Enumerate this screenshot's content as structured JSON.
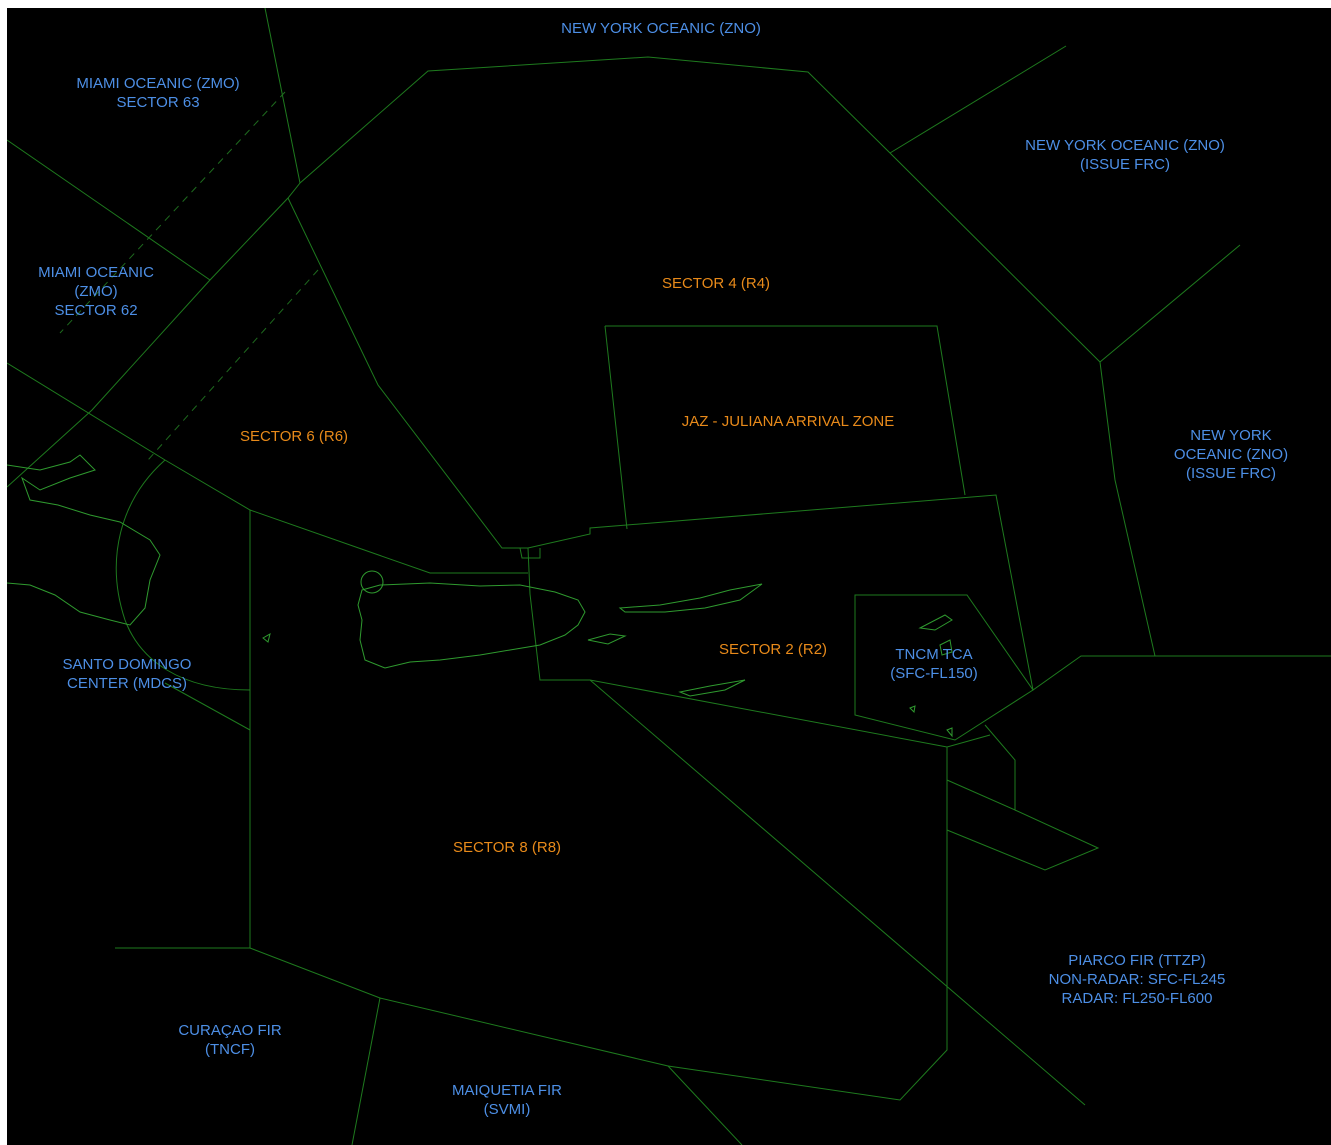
{
  "colors": {
    "background": "#000000",
    "boundary": "#1e7a1e",
    "coastline": "#2f9a2f",
    "external_label": "#4d8fe6",
    "sector_label": "#e88a1a"
  },
  "labels": {
    "ny_oceanic_top": [
      "NEW YORK OCEANIC (ZNO)"
    ],
    "miami_63": [
      "MIAMI OCEANIC (ZMO)",
      "SECTOR 63"
    ],
    "ny_oceanic_frc_1": [
      "NEW YORK OCEANIC (ZNO)",
      "(ISSUE FRC)"
    ],
    "sector_4": [
      "SECTOR 4 (R4)"
    ],
    "miami_62": [
      "MIAMI OCEANIC",
      "(ZMO)",
      "SECTOR 62"
    ],
    "jaz": [
      "JAZ - JULIANA ARRIVAL ZONE"
    ],
    "sector_6": [
      "SECTOR 6 (R6)"
    ],
    "ny_oceanic_frc_2": [
      "NEW YORK",
      "OCEANIC (ZNO)",
      "(ISSUE FRC)"
    ],
    "sector_2": [
      "SECTOR 2 (R2)"
    ],
    "tncm_tca": [
      "TNCM TCA",
      "(SFC-FL150)"
    ],
    "santo_domingo": [
      "SANTO DOMINGO",
      "CENTER (MDCS)"
    ],
    "sector_8": [
      "SECTOR 8 (R8)"
    ],
    "piarco": [
      "PIARCO FIR (TTZP)",
      "NON-RADAR: SFC-FL245",
      "RADAR: FL250-FL600"
    ],
    "curacao": [
      "CURAÇAO FIR",
      "(TNCF)"
    ],
    "maiquetia": [
      "MAIQUETIA FIR",
      "(SVMI)"
    ]
  }
}
